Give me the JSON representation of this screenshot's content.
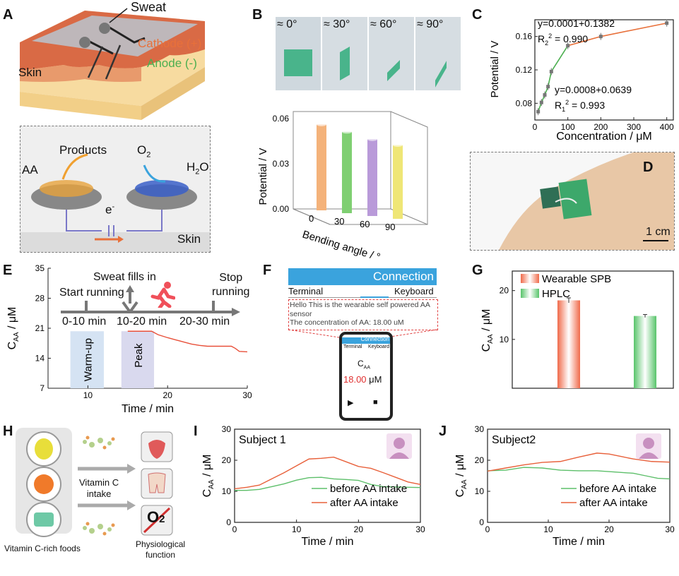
{
  "panels": {
    "A": {
      "label": "A",
      "sweat": "Sweat",
      "cathode": "Cathode (+)",
      "anode": "Anode (-)",
      "skin_top": "Skin",
      "products": "Products",
      "aa": "AA",
      "o2": "O",
      "o2_sub": "2",
      "h2o": "H",
      "h2o_sub": "2",
      "h2o_tail": "O",
      "electron": "e",
      "electron_sup": "-",
      "skin_bottom": "Skin"
    },
    "B": {
      "label": "B",
      "angles": [
        "≈ 0°",
        "≈ 30°",
        "≈ 60°",
        "≈ 90°"
      ]
    },
    "C": {
      "label": "C"
    },
    "D": {
      "label": "D",
      "scale": "1 cm"
    },
    "E": {
      "label": "E",
      "sweat_fills": "Sweat fills in",
      "start_running": "Start running",
      "stop_running_1": "Stop",
      "stop_running_2": "running",
      "t1": "0-10 min",
      "t2": "10-20 min",
      "t3": "20-30 min",
      "warmup": "Warm-up",
      "peak": "Peak"
    },
    "F": {
      "label": "F",
      "title": "Connection",
      "terminal": "Terminal",
      "keyboard": "Keyboard",
      "line1": "Hello This is the wearable self powered AA",
      "line2": "sensor",
      "line3": "The concentration of AA:  18.00 uM",
      "phone_title": "Connection",
      "phone_terminal": "Terminal",
      "phone_keyboard": "Keyboard",
      "phone_caa": "C",
      "phone_caa_sub": "AA",
      "phone_value": "18.00",
      "phone_unit": "μM"
    },
    "G": {
      "label": "G"
    },
    "H": {
      "label": "H",
      "intake_1": "Vitamin C",
      "intake_2": "intake",
      "foods": "Vitamin C-rich foods",
      "physio_1": "Physiological",
      "physio_2": "function",
      "o2": "O",
      "o2_sub": "2"
    },
    "I": {
      "label": "I"
    },
    "J": {
      "label": "J"
    }
  },
  "chart_data": [
    {
      "id": "B",
      "type": "bar",
      "categories": [
        "0",
        "30",
        "60",
        "90"
      ],
      "values": [
        0.057,
        0.054,
        0.051,
        0.049
      ],
      "xlabel": "Bending angle / °",
      "ylabel": "Potential / V",
      "yticks": [
        "0.00",
        "0.03",
        "0.06"
      ],
      "ylim": [
        0,
        0.06
      ],
      "colors": [
        "#f4b27a",
        "#7fcf72",
        "#b99ad9",
        "#efe676"
      ]
    },
    {
      "id": "C",
      "type": "scatter",
      "x": [
        10,
        20,
        30,
        40,
        50,
        100,
        200,
        400
      ],
      "y": [
        0.07,
        0.081,
        0.09,
        0.1,
        0.118,
        0.149,
        0.16,
        0.176
      ],
      "xlabel": "Concentration / μM",
      "ylabel": "Potential / V",
      "xticks": [
        "0",
        "100",
        "200",
        "300",
        "400"
      ],
      "yticks": [
        "0.08",
        "0.12",
        "0.16"
      ],
      "xlim": [
        0,
        420
      ],
      "ylim": [
        0.06,
        0.18
      ],
      "fits": [
        {
          "text": "y=0.0001+0.1382",
          "r_label": "R",
          "r_sub": "2",
          "r_sup": "2",
          "r_value": " = 0.990",
          "color": "#e8703a"
        },
        {
          "text": "y=0.0008+0.0639",
          "r_label": "R",
          "r_sub": "1",
          "r_sup": "2",
          "r_value": " = 0.993",
          "color": "#4caf50"
        }
      ]
    },
    {
      "id": "E",
      "type": "line",
      "x": [
        15,
        18,
        18.8,
        20,
        21,
        22,
        23,
        24,
        25,
        27,
        28,
        28.5,
        29,
        30
      ],
      "y": [
        20.3,
        20.3,
        19.5,
        18.8,
        18.3,
        17.8,
        17.3,
        17.0,
        16.8,
        16.8,
        16.8,
        16.3,
        15.6,
        15.5
      ],
      "xlabel": "Time / min",
      "ylabel": "C",
      "ylabel_sub": "AA",
      "ylabel_tail": " / μM",
      "xticks": [
        "10",
        "20",
        "30"
      ],
      "yticks": [
        "7",
        "14",
        "21",
        "28",
        "35"
      ],
      "xlim": [
        5,
        30
      ],
      "ylim": [
        7,
        35
      ],
      "color": "#e8503a"
    },
    {
      "id": "G",
      "type": "bar",
      "categories": [
        "Wearable SPB",
        "HPLC"
      ],
      "values": [
        18.0,
        14.8
      ],
      "errors": [
        0.5,
        0.3
      ],
      "ylabel": "C",
      "ylabel_sub": "AA",
      "ylabel_tail": " / μM",
      "yticks": [
        "10",
        "20"
      ],
      "ylim": [
        0,
        24
      ],
      "colors": [
        "#f06a4a",
        "#58c46a"
      ],
      "legend": [
        "Wearable SPB",
        "HPLC"
      ]
    },
    {
      "id": "I",
      "type": "line",
      "title": "Subject 1",
      "xlabel": "Time / min",
      "ylabel": "C",
      "ylabel_sub": "AA",
      "ylabel_tail": " / μM",
      "xticks": [
        "0",
        "10",
        "20",
        "30"
      ],
      "yticks": [
        "0",
        "10",
        "20",
        "30"
      ],
      "xlim": [
        0,
        30
      ],
      "ylim": [
        0,
        30
      ],
      "series": [
        {
          "name": "before AA intake",
          "color": "#5dbf6a",
          "x": [
            0,
            2,
            4,
            6,
            8,
            10,
            12,
            14,
            16,
            18,
            20,
            22,
            24,
            26,
            28,
            30
          ],
          "y": [
            10.3,
            10.3,
            10.6,
            11.5,
            12.4,
            13.6,
            14.4,
            14.5,
            14.0,
            13.8,
            13.5,
            12.2,
            11.5,
            11.4,
            11.3,
            11.2
          ]
        },
        {
          "name": "after AA intake",
          "color": "#e8603a",
          "x": [
            0,
            2,
            4,
            6,
            8,
            10,
            12,
            14,
            16,
            18,
            20,
            22,
            24,
            26,
            28,
            30
          ],
          "y": [
            10.8,
            11.3,
            12.0,
            14.0,
            16.0,
            18.2,
            20.4,
            20.6,
            21.0,
            19.5,
            18.0,
            17.4,
            16.0,
            14.5,
            13.0,
            12.2
          ]
        }
      ]
    },
    {
      "id": "J",
      "type": "line",
      "title": "Subject2",
      "xlabel": "Time / min",
      "ylabel": "C",
      "ylabel_sub": "AA",
      "ylabel_tail": " / μM",
      "xticks": [
        "0",
        "10",
        "20",
        "30"
      ],
      "yticks": [
        "0",
        "10",
        "20",
        "30"
      ],
      "xlim": [
        0,
        30
      ],
      "ylim": [
        0,
        30
      ],
      "series": [
        {
          "name": "before AA intake",
          "color": "#5dbf6a",
          "x": [
            0,
            3,
            6,
            9,
            12,
            15,
            18,
            21,
            24,
            26,
            28,
            30
          ],
          "y": [
            16.6,
            16.8,
            17.7,
            17.5,
            16.8,
            16.6,
            16.6,
            16.2,
            15.8,
            15.0,
            14.2,
            14.0
          ]
        },
        {
          "name": "after AA intake",
          "color": "#e8603a",
          "x": [
            0,
            3,
            6,
            9,
            12,
            15,
            18,
            20,
            22,
            24,
            27,
            30
          ],
          "y": [
            16.5,
            17.5,
            18.5,
            19.3,
            19.6,
            21.0,
            22.3,
            22.0,
            21.2,
            20.4,
            19.6,
            19.4
          ]
        }
      ]
    }
  ]
}
